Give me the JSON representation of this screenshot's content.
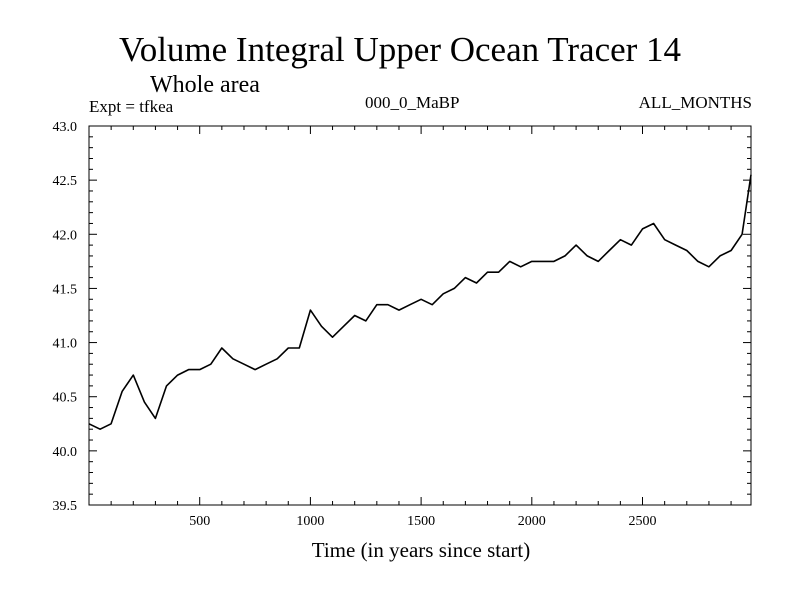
{
  "chart_data": {
    "type": "line",
    "title": "Volume Integral Upper Ocean Tracer 14",
    "subtitle": "Whole area",
    "annotations": {
      "experiment": "Expt = tfkea",
      "period": "000_0_MaBP",
      "months": "ALL_MONTHS"
    },
    "xlabel": "Time (in years since start)",
    "ylabel": "",
    "xlim": [
      0,
      2990
    ],
    "ylim": [
      39.5,
      43.0
    ],
    "xticks": [
      500,
      1000,
      1500,
      2000,
      2500
    ],
    "yticks": [
      39.5,
      40.0,
      40.5,
      41.0,
      41.5,
      42.0,
      42.5,
      43.0
    ],
    "ytick_labels": [
      "39.5",
      "40.0",
      "40.5",
      "41.0",
      "41.5",
      "42.0",
      "42.5",
      "43.0"
    ],
    "grid": false,
    "line_color": "#000000",
    "series": [
      {
        "x": [
          0,
          50,
          100,
          150,
          200,
          250,
          300,
          350,
          400,
          450,
          500,
          550,
          600,
          650,
          700,
          750,
          800,
          850,
          900,
          950,
          1000,
          1050,
          1100,
          1150,
          1200,
          1250,
          1300,
          1350,
          1400,
          1450,
          1500,
          1550,
          1600,
          1650,
          1700,
          1750,
          1800,
          1850,
          1900,
          1950,
          2000,
          2050,
          2100,
          2150,
          2200,
          2250,
          2300,
          2350,
          2400,
          2450,
          2500,
          2550,
          2600,
          2650,
          2700,
          2750,
          2800,
          2850,
          2900,
          2950,
          2990
        ],
        "values": [
          40.25,
          40.2,
          40.25,
          40.55,
          40.7,
          40.45,
          40.3,
          40.6,
          40.7,
          40.75,
          40.75,
          40.8,
          40.95,
          40.85,
          40.8,
          40.75,
          40.8,
          40.85,
          40.95,
          40.95,
          41.3,
          41.15,
          41.05,
          41.15,
          41.25,
          41.2,
          41.35,
          41.35,
          41.3,
          41.35,
          41.4,
          41.35,
          41.45,
          41.5,
          41.6,
          41.55,
          41.65,
          41.65,
          41.75,
          41.7,
          41.75,
          41.75,
          41.75,
          41.8,
          41.9,
          41.8,
          41.75,
          41.85,
          41.95,
          41.9,
          42.05,
          42.1,
          41.95,
          41.9,
          41.85,
          41.75,
          41.7,
          41.8,
          41.85,
          42.0,
          42.55
        ]
      }
    ]
  }
}
